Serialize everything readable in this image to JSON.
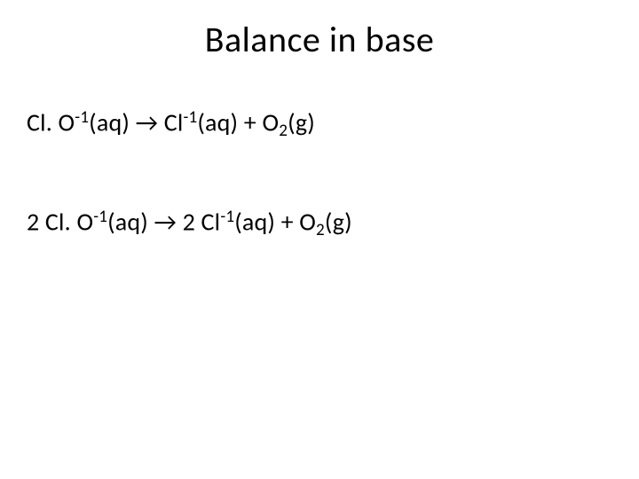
{
  "slide": {
    "title": "Balance in base",
    "title_fontsize": 40,
    "title_color": "#000000",
    "body_fontsize": 28,
    "body_color": "#000000",
    "background_color": "#ffffff",
    "equations": [
      {
        "reactant_prefix": "Cl. O",
        "reactant_charge": "-1",
        "reactant_state": "(aq)",
        "arrow": "→",
        "product1_prefix": " Cl",
        "product1_charge": "-1",
        "product1_state": "(aq) + O",
        "product1_sub": "2",
        "product1_suffix": "(g)"
      },
      {
        "reactant_prefix": "2 Cl. O",
        "reactant_charge": "-1",
        "reactant_state": "(aq)",
        "arrow": "→",
        "product1_prefix": " 2 Cl",
        "product1_charge": "-1",
        "product1_state": "(aq) + O",
        "product1_sub": "2",
        "product1_suffix": "(g)"
      }
    ]
  }
}
